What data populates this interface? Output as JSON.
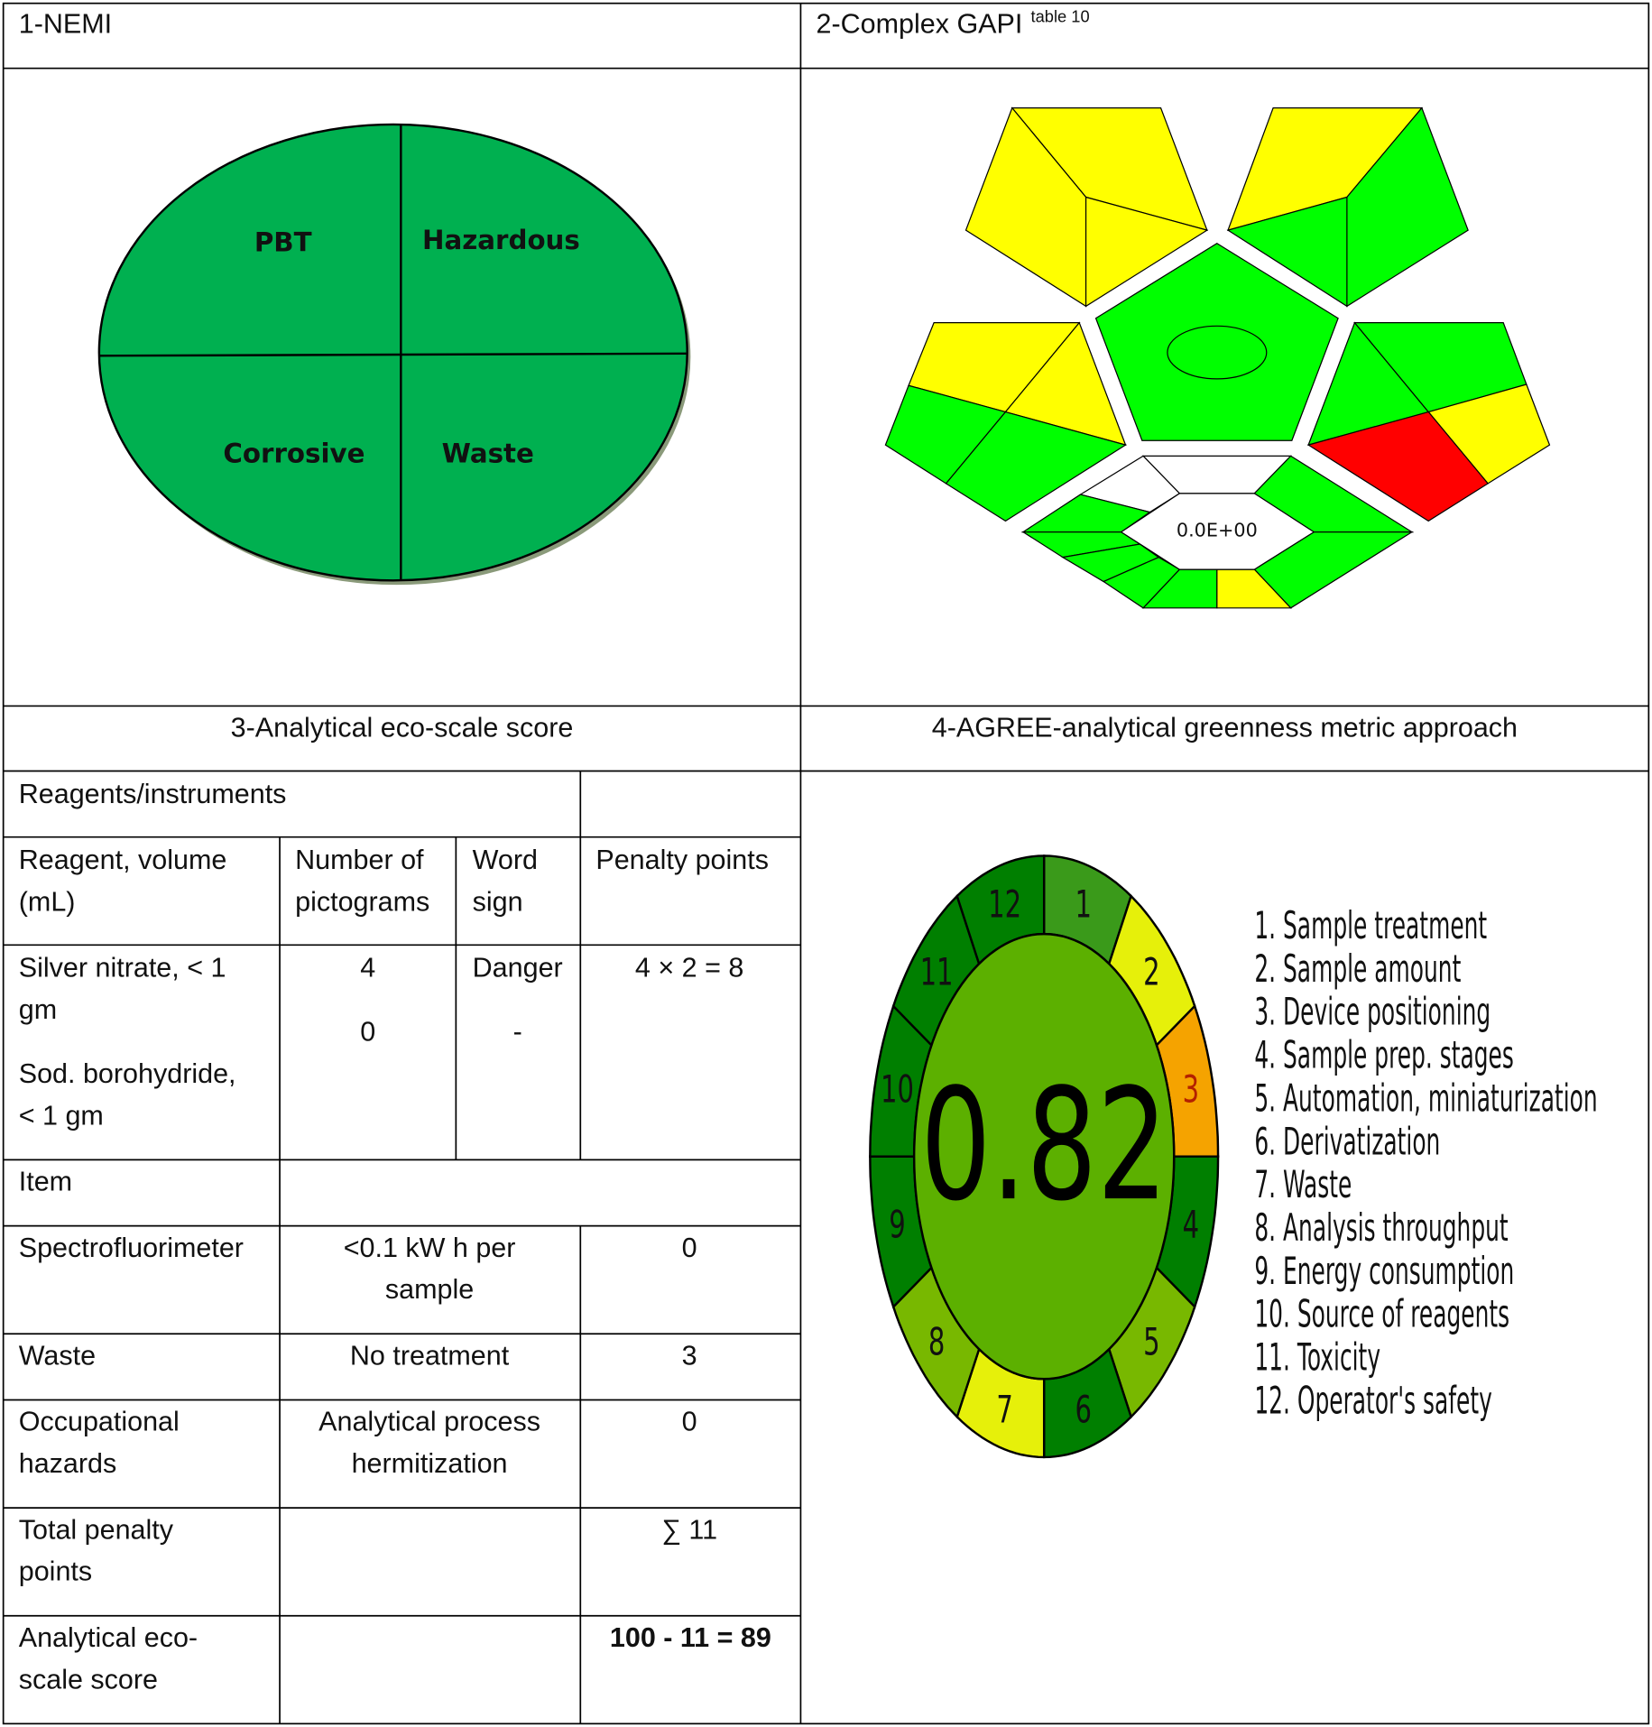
{
  "panels": {
    "nemi_title": "1-NEMI",
    "gapi_title": "2-Complex GAPI",
    "gapi_ref": "table 10",
    "eco_title": "3-Analytical eco-scale score",
    "agree_title": "4-AGREE-analytical greenness metric approach"
  },
  "nemi": {
    "color": "#00b050",
    "quadrants": [
      "PBT",
      "Hazardous",
      "Corrosive",
      "Waste"
    ]
  },
  "gapi": {
    "colors": {
      "green": "#00ff00",
      "yellow": "#ffff00",
      "red": "#ff0000",
      "white": "#ffffff"
    },
    "center_value": "0.0E+00"
  },
  "eco_table": {
    "reagents_header": "Reagents/instruments",
    "col_headers": {
      "reagent": [
        "Reagent, volume",
        "(mL)"
      ],
      "pictograms": [
        "Number of",
        "pictograms"
      ],
      "word": [
        "Word",
        "sign"
      ],
      "penalty": "Penalty points"
    },
    "reagents": {
      "names": [
        "Silver nitrate, < 1",
        "gm",
        "Sod. borohydride,",
        "< 1 gm"
      ],
      "pictograms": [
        "4",
        "0"
      ],
      "word": [
        "Danger",
        "-"
      ],
      "penalty": "4 × 2 = 8"
    },
    "item_header": "Item",
    "rows": [
      {
        "name": [
          "Spectrofluorimeter"
        ],
        "detail": [
          "<0.1 kW h per",
          "sample"
        ],
        "penalty": "0"
      },
      {
        "name": [
          "Waste"
        ],
        "detail": [
          "No treatment"
        ],
        "penalty": "3"
      },
      {
        "name": [
          "Occupational",
          "hazards"
        ],
        "detail": [
          "Analytical process",
          "hermitization"
        ],
        "penalty": "0"
      },
      {
        "name": [
          "Total penalty",
          "points"
        ],
        "detail": [],
        "penalty": "∑ 11"
      },
      {
        "name": [
          "Analytical eco-",
          "scale score"
        ],
        "detail": [],
        "penalty": "100 - 11 = 89"
      }
    ]
  },
  "agree": {
    "score": "0.82",
    "center_color": "#5cb000",
    "segments": [
      {
        "label": "1",
        "color": "#3a9a1a"
      },
      {
        "label": "2",
        "color": "#e6f00a"
      },
      {
        "label": "3",
        "color": "#f5a300"
      },
      {
        "label": "4",
        "color": "#007f00"
      },
      {
        "label": "5",
        "color": "#78b800"
      },
      {
        "label": "6",
        "color": "#007f00"
      },
      {
        "label": "7",
        "color": "#e6f00a"
      },
      {
        "label": "8",
        "color": "#78b800"
      },
      {
        "label": "9",
        "color": "#007f00"
      },
      {
        "label": "10",
        "color": "#007f00"
      },
      {
        "label": "11",
        "color": "#007f00"
      },
      {
        "label": "12",
        "color": "#007f00"
      }
    ],
    "legend": [
      "1. Sample treatment",
      "2. Sample amount",
      "3. Device positioning",
      "4. Sample prep. stages",
      "5. Automation, miniaturization",
      "6. Derivatization",
      "7. Waste",
      "8. Analysis throughput",
      "9. Energy consumption",
      "10. Source of reagents",
      "11. Toxicity",
      "12. Operator's safety"
    ]
  }
}
